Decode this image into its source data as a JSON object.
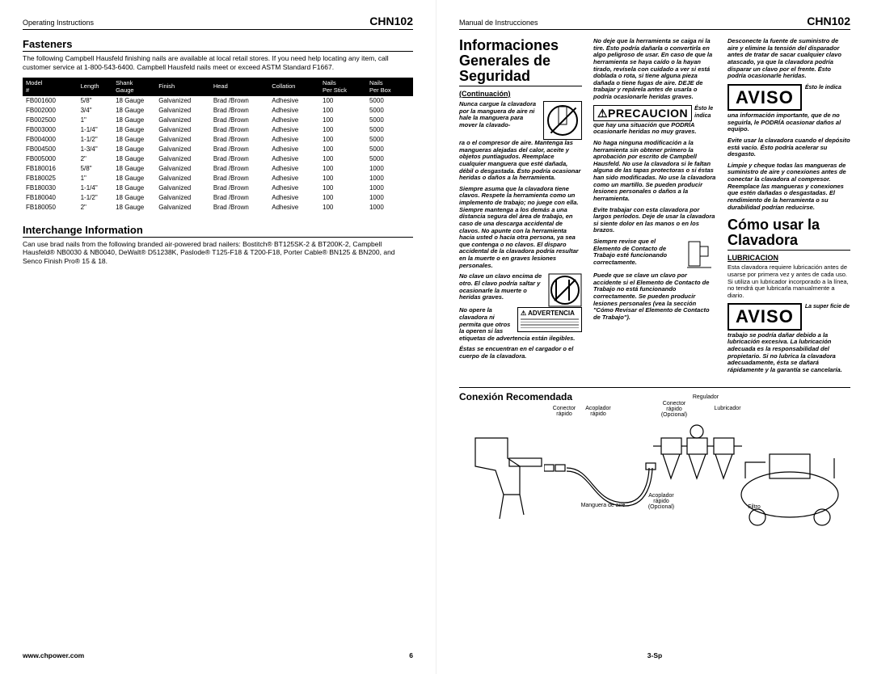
{
  "left": {
    "doc_title": "Operating Instructions",
    "model": "CHN102",
    "fasteners_heading": "Fasteners",
    "fasteners_intro": "The following Campbell Hausfeld finishing nails are available at local retail stores. If you need help locating any item, call customer service at 1-800-543-6400. Campbell Hausfeld nails meet or exceed ASTM Standard F1667.",
    "table": {
      "columns": [
        "Model #",
        "Length",
        "Shank Gauge",
        "Finish",
        "Head",
        "Collation",
        "Nails Per Stick",
        "Nails Per Box"
      ],
      "col_widths": [
        "14%",
        "9%",
        "11%",
        "14%",
        "15%",
        "13%",
        "12%",
        "12%"
      ],
      "rows": [
        [
          "FB001600",
          "5/8\"",
          "18 Gauge",
          "Galvanized",
          "Brad /Brown",
          "Adhesive",
          "100",
          "5000"
        ],
        [
          "FB002000",
          "3/4\"",
          "18 Gauge",
          "Galvanized",
          "Brad /Brown",
          "Adhesive",
          "100",
          "5000"
        ],
        [
          "FB002500",
          "1\"",
          "18 Gauge",
          "Galvanized",
          "Brad /Brown",
          "Adhesive",
          "100",
          "5000"
        ],
        [
          "FB003000",
          "1-1/4\"",
          "18 Gauge",
          "Galvanized",
          "Brad /Brown",
          "Adhesive",
          "100",
          "5000"
        ],
        [
          "FB004000",
          "1-1/2\"",
          "18 Gauge",
          "Galvanized",
          "Brad /Brown",
          "Adhesive",
          "100",
          "5000"
        ],
        [
          "FB004500",
          "1-3/4\"",
          "18 Gauge",
          "Galvanized",
          "Brad /Brown",
          "Adhesive",
          "100",
          "5000"
        ],
        [
          "FB005000",
          "2\"",
          "18 Gauge",
          "Galvanized",
          "Brad /Brown",
          "Adhesive",
          "100",
          "5000"
        ],
        [
          "FB180016",
          "5/8\"",
          "18 Gauge",
          "Galvanized",
          "Brad /Brown",
          "Adhesive",
          "100",
          "1000"
        ],
        [
          "FB180025",
          "1\"",
          "18 Gauge",
          "Galvanized",
          "Brad /Brown",
          "Adhesive",
          "100",
          "1000"
        ],
        [
          "FB180030",
          "1-1/4\"",
          "18 Gauge",
          "Galvanized",
          "Brad /Brown",
          "Adhesive",
          "100",
          "1000"
        ],
        [
          "FB180040",
          "1-1/2\"",
          "18 Gauge",
          "Galvanized",
          "Brad /Brown",
          "Adhesive",
          "100",
          "1000"
        ],
        [
          "FB180050",
          "2\"",
          "18 Gauge",
          "Galvanized",
          "Brad /Brown",
          "Adhesive",
          "100",
          "1000"
        ]
      ]
    },
    "interchange_heading": "Interchange Information",
    "interchange_text": "Can use brad nails from the following branded air-powered brad nailers: Bostitch® BT125SK-2 & BT200K-2, Campbell Hausfeld® NB0030 & NB0040, DeWalt® D51238K, Paslode® T125-F18 & T200-F18, Porter Cable® BN125 & BN200, and Senco Finish Pro® 15 & 18.",
    "footer_url": "www.chpower.com",
    "page_num": "6"
  },
  "right": {
    "doc_title": "Manual de Instrucciones",
    "model": "CHN102",
    "seguridad_heading": "Informaciones Generales de Seguridad",
    "continuacion": "(Continuación)",
    "col1": {
      "p1": "Nunca cargue la clavadora por la manguera de aire ni hale la manguera para mover la clavado-",
      "p1b": "ra o el compresor de aire. Mantenga las mangueras alejadas del calor, aceite y objetos puntiagudos. Reemplace cualquier manguera que esté dañada, débil o desgastada. Ésto podría ocasionar heridas o daños a la herramienta.",
      "p2": "Siempre asuma que la clavadora tiene clavos. Respete la herramienta como un implemento de trabajo; no juege con ella. Siempre mantenga a los demás a una distancia segura del área de trabajo, en caso de una descarga accidental de clavos. No apunte con la herramienta hacia usted o hacia otra persona, ya sea que contenga o no clavos. El disparo accidental de la clavadora podría resultar en la muerte o en graves lesiones personales.",
      "p3": "No clave un clavo encima de otro. El clavo podría saltar y ocasionarle la muerte o heridas graves.",
      "p4": "No opere la clavadora ni permita que otros la operen si las etiquetas de advertencia están ilegibles.",
      "p4b": "Éstas se encuentran en el cargador o el cuerpo de la clavadora.",
      "advert_label": "⚠ ADVERTENCIA"
    },
    "col2": {
      "p1": "No deje que la herramienta se caiga ni la tire. Ésto podría dañarla o convertirla en algo peligroso de usar. En caso de que la herramienta se haya caído o la hayan tirado, revísela con cuidado a ver si está doblada o rota, si tiene alguna pieza dañada o tiene fugas de aire. DEJE de trabajar y repárela antes de usarla o podría ocasionarle heridas graves.",
      "precaucion": "⚠PRECAUCION",
      "precaucion_tail": "Ésto le indica",
      "p2": "que hay una situación que PODRÍA ocasionarle heridas no muy graves.",
      "p3": "No haga ninguna modificación a la herramienta sin obtener primero la aprobación por escrito de Campbell Hausfeld. No use la clavadora si le faltan alguna de las tapas protectoras o si éstas han sido modificadas. No use la clavadora como un martillo. Se pueden producir lesiones personales o daños a la herramienta.",
      "p4": "Evite trabajar con esta clavadora por largos períodos. Deje de usar la clavadora si siente dolor en las manos o en los brazos.",
      "p5": "Siempre revise que el Elemento de Contacto de Trabajo esté funcionando correctamente.",
      "p5b": "Puede que se clave un clavo por accidente si el Elemento de Contacto de Trabajo no está funcionando correctamente. Se pueden producir lesiones personales (vea la sección \"Cómo Revisar el Elemento de Contacto de Trabajo\")."
    },
    "col3": {
      "p1": "Desconecte la fuente de suministro de aire y elimine la tensión del disparador antes de tratar de sacar cualquier clavo atascado, ya que la clavadora podría disparar un clavo por el frente. Ésto podría ocasionarle heridas.",
      "aviso": "AVISO",
      "aviso_tail": "Ésto le indica",
      "p2": "una información importante, que de no seguirla, le PODRÍA ocasionar daños al equipo.",
      "p3": "Evite usar la clavadora cuando el depósito está vacío. Ésto podría acelerar su desgasto.",
      "p4": "Limpie y cheque todas las mangueras de suministro de aire y conexiones antes de conectar la clavadora al compresor. Reemplace las mangueras y conexiones que estén dañadas o desgastadas. El rendimiento de la herramienta o su durabilidad podrían reducirse.",
      "como_heading": "Cómo usar la Clavadora",
      "lub_heading": "LUBRICACION",
      "p5": "Esta clavadora requiere lubricación antes de usarse por primera vez y antes de cada uso. Si utiliza un lubricador incorporado a la línea, no tendrá que lubricarla manualmente a diario.",
      "aviso2": "AVISO",
      "aviso2_tail": "La super ficie de",
      "p6": "trabajo se podría dañar debido a la lubricación excesiva. La lubricación adecuada es la responsabilidad del propietario. Si no lubrica la clavadora adecuadamente, ésta se dañará rápidamente y la garantía se cancelaría."
    },
    "connection_heading": "Conexión Recomendada",
    "labels": {
      "conector_rapido": "Conector rápido",
      "acoplador_rapido": "Acoplador rápido",
      "conector_rapido_opc": "Conector rápido (Opcional)",
      "acoplador_rapido_opc": "Acoplador rápido (Opcional)",
      "lubricador": "Lubricador",
      "regulador": "Regulador",
      "manguera": "Manguera de aire",
      "filtro": "Filtro"
    },
    "page_num": "3-Sp"
  }
}
